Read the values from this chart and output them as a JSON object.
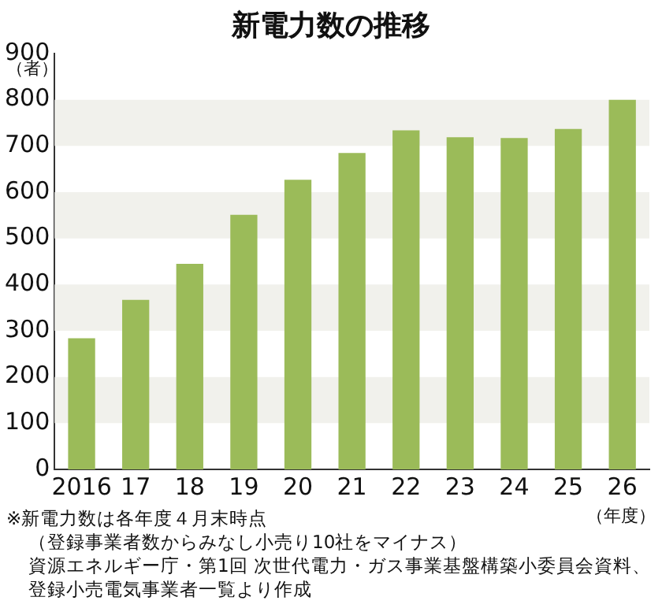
{
  "chart_data": {
    "type": "bar",
    "title": "新電力数の推移",
    "ylabel": "（者）",
    "xlabel": "（年度）",
    "categories": [
      "2016",
      "17",
      "18",
      "19",
      "20",
      "21",
      "22",
      "23",
      "24",
      "25",
      "26"
    ],
    "values": [
      284,
      367,
      445,
      551,
      627,
      685,
      734,
      719,
      717,
      737,
      800
    ],
    "color": "#9bbb59",
    "ylim": [
      0,
      900
    ],
    "yticks": [
      0,
      100,
      200,
      300,
      400,
      500,
      600,
      700,
      800,
      900
    ],
    "grid": false,
    "bands": [
      {
        "axis": "y",
        "from": 100,
        "to": 200,
        "color": "#f1f1ec"
      },
      {
        "axis": "y",
        "from": 300,
        "to": 400,
        "color": "#f1f1ec"
      },
      {
        "axis": "y",
        "from": 500,
        "to": 600,
        "color": "#f1f1ec"
      },
      {
        "axis": "y",
        "from": 700,
        "to": 800,
        "color": "#f1f1ec"
      }
    ],
    "annotations": [
      "※新電力数は各年度４月末時点",
      "（登録事業者数からみなし小売り10社をマイナス）",
      "資源エネルギー庁・第1回 次世代電力・ガス事業基盤構築小委員会資料、",
      "登録小売電気事業者一覧より作成"
    ]
  }
}
